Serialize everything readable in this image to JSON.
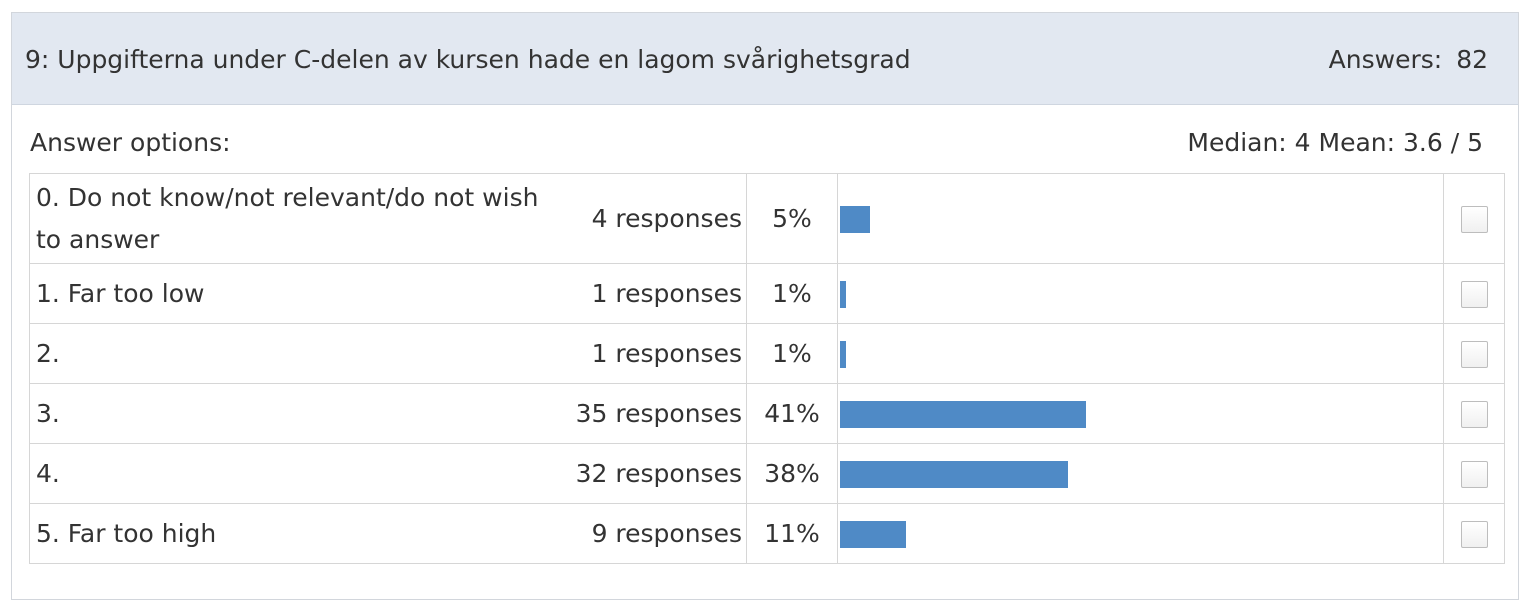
{
  "question": {
    "title": "9:  Uppgifterna under C-delen av kursen hade en lagom svårighetsgrad",
    "answers_label": "Answers:",
    "answers_count": "82"
  },
  "options_label": "Answer options:",
  "stats": "Median: 4 Mean: 3.6 / 5",
  "bar_color": "#4f8ac6",
  "rows": [
    {
      "label": "0.  Do not know/not relevant/do not wish to answer",
      "responses": "4 responses",
      "percent": "5%",
      "value": 5
    },
    {
      "label": "1.  Far too low",
      "responses": "1 responses",
      "percent": "1%",
      "value": 1
    },
    {
      "label": "2.",
      "responses": "1 responses",
      "percent": "1%",
      "value": 1
    },
    {
      "label": "3.",
      "responses": "35 responses",
      "percent": "41%",
      "value": 41
    },
    {
      "label": "4.",
      "responses": "32 responses",
      "percent": "38%",
      "value": 38
    },
    {
      "label": "5.  Far too high",
      "responses": "9 responses",
      "percent": "11%",
      "value": 11
    }
  ],
  "chart_data": {
    "type": "bar",
    "orientation": "horizontal",
    "categories": [
      "0.  Do not know/not relevant/do not wish to answer",
      "1.  Far too low",
      "2.",
      "3.",
      "4.",
      "5.  Far too high"
    ],
    "values": [
      5,
      1,
      1,
      41,
      38,
      11
    ],
    "counts": [
      4,
      1,
      1,
      35,
      32,
      9
    ],
    "unit": "%",
    "xlim": [
      0,
      100
    ]
  }
}
